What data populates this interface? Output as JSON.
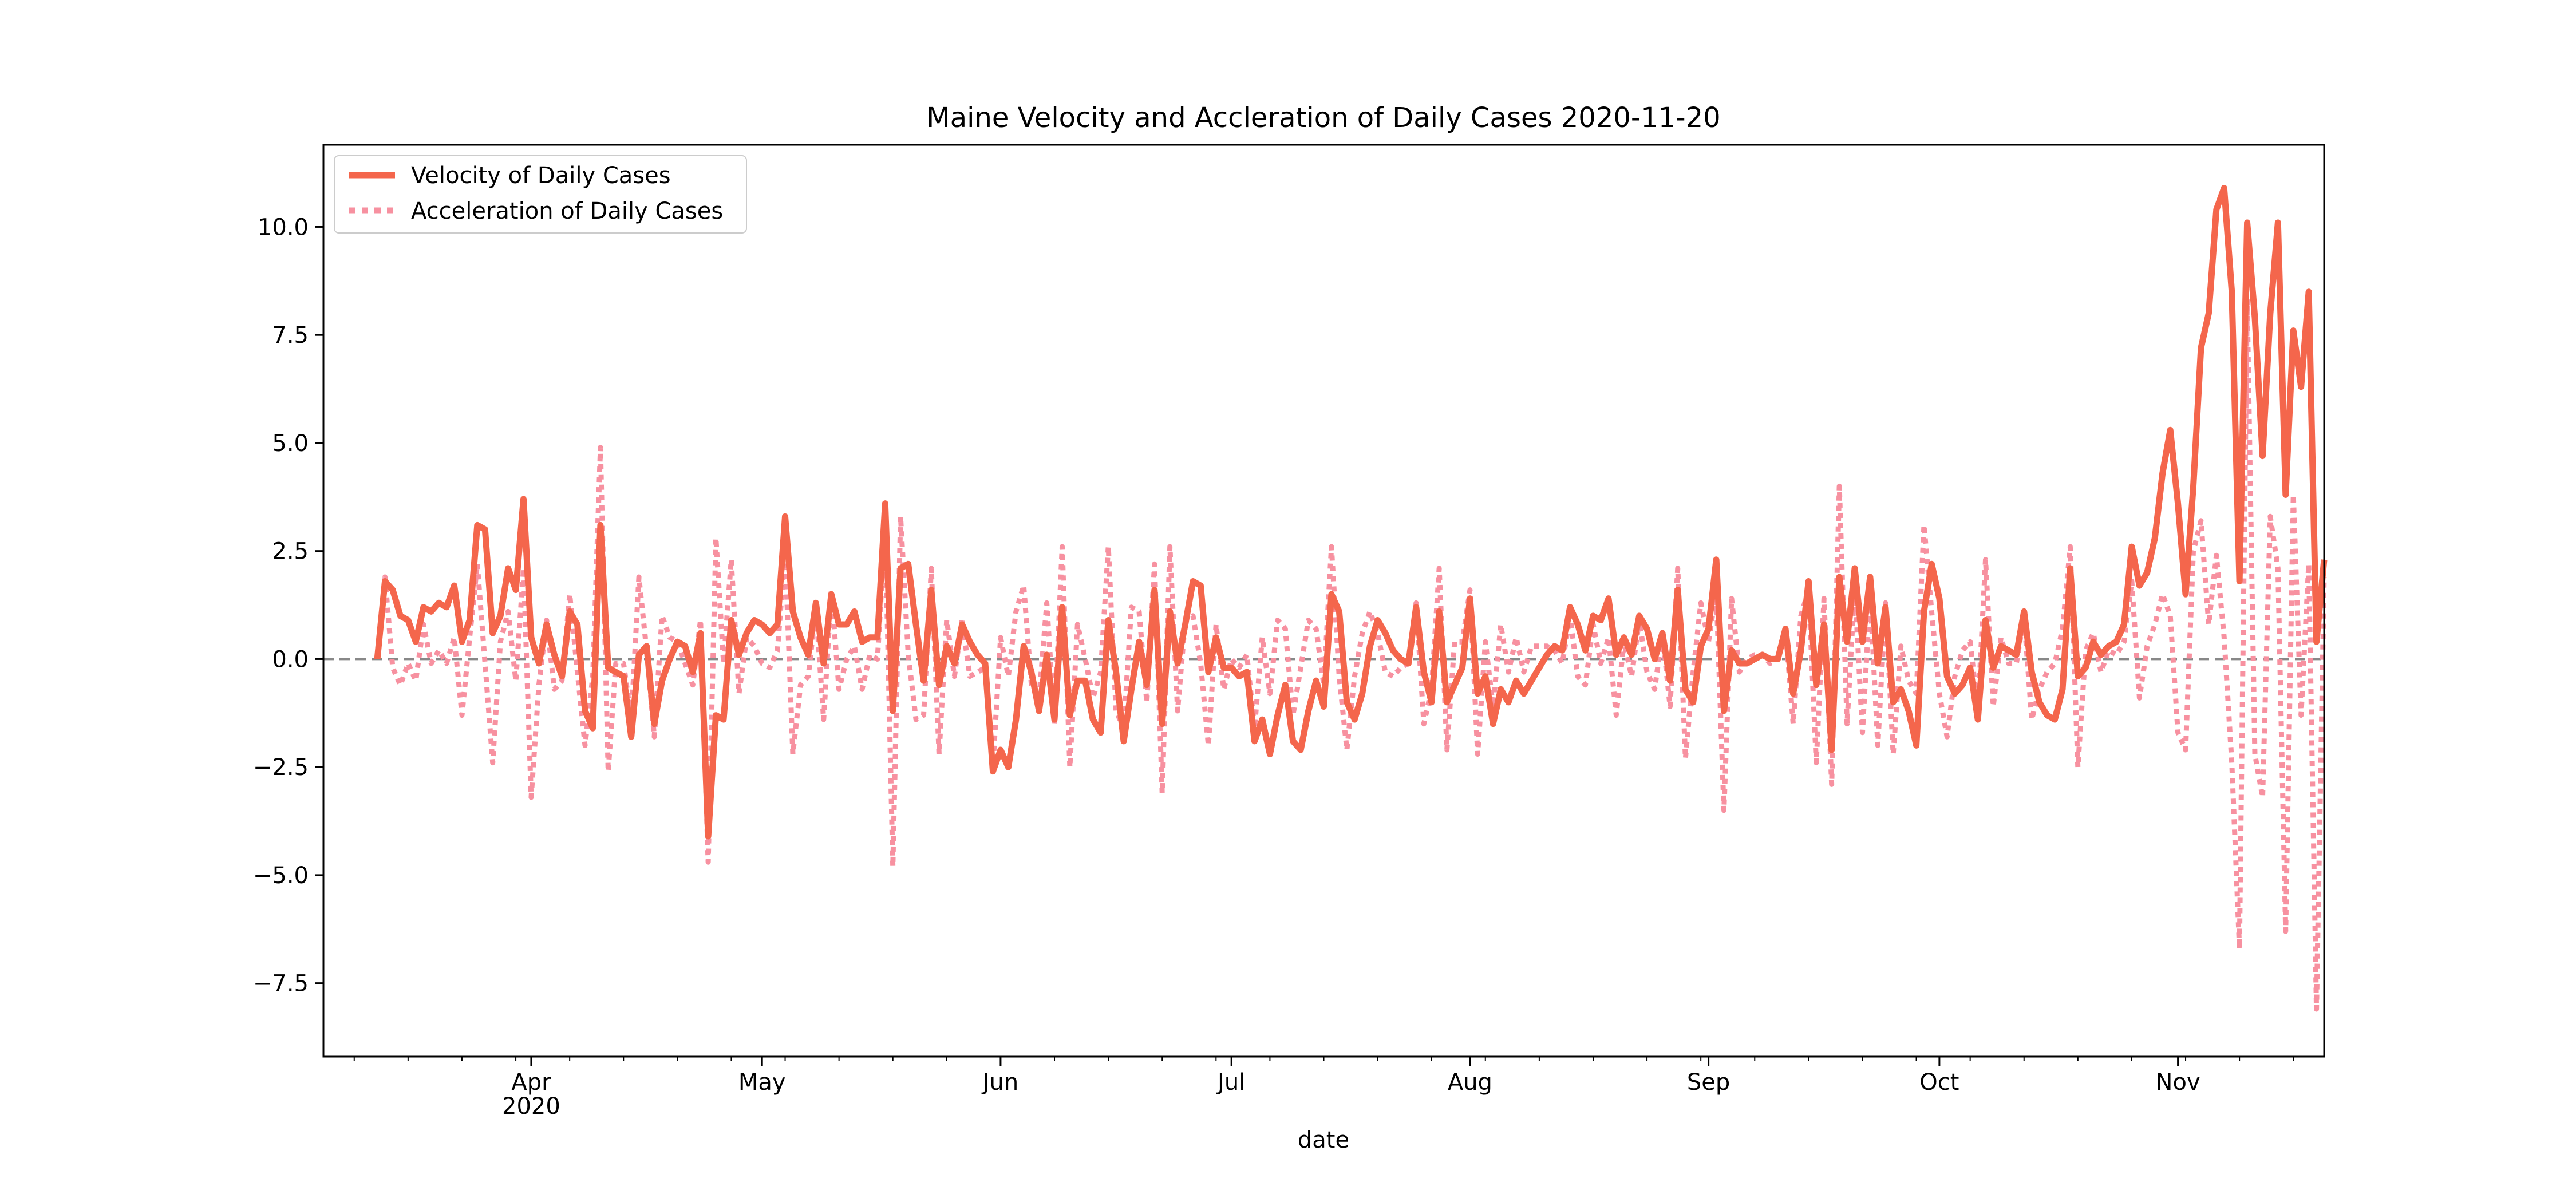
{
  "chart_data": {
    "type": "line",
    "title": "Maine Velocity and Accleration of Daily Cases 2020-11-20",
    "xlabel": "date",
    "ylabel": "",
    "x_start": "2020-03-12",
    "x_end": "2020-11-20",
    "xlim": [
      "2020-03-05",
      "2020-11-20"
    ],
    "ylim": [
      -9.2,
      11.9
    ],
    "y_ticks": [
      -7.5,
      -5.0,
      -2.5,
      0.0,
      2.5,
      5.0,
      7.5,
      10.0
    ],
    "y_tick_labels": [
      "−7.5",
      "−5.0",
      "−2.5",
      "0.0",
      "2.5",
      "5.0",
      "7.5",
      "10.0"
    ],
    "x_ticks": [
      {
        "date": "2020-04-01",
        "label": "Apr",
        "sublabel": "2020"
      },
      {
        "date": "2020-05-01",
        "label": "May",
        "sublabel": ""
      },
      {
        "date": "2020-06-01",
        "label": "Jun",
        "sublabel": ""
      },
      {
        "date": "2020-07-01",
        "label": "Jul",
        "sublabel": ""
      },
      {
        "date": "2020-08-01",
        "label": "Aug",
        "sublabel": ""
      },
      {
        "date": "2020-09-01",
        "label": "Sep",
        "sublabel": ""
      },
      {
        "date": "2020-10-01",
        "label": "Oct",
        "sublabel": ""
      },
      {
        "date": "2020-11-01",
        "label": "Nov",
        "sublabel": ""
      }
    ],
    "reference_line": 0,
    "legend": "top-left",
    "grid": false,
    "series": [
      {
        "name": "Velocity of Daily Cases",
        "color": "#f4664c",
        "style": "solid",
        "values": [
          0.0,
          1.8,
          1.6,
          1.0,
          0.9,
          0.4,
          1.2,
          1.1,
          1.3,
          1.2,
          1.7,
          0.4,
          0.9,
          3.1,
          3.0,
          0.6,
          1.0,
          2.1,
          1.6,
          3.7,
          0.5,
          -0.1,
          0.8,
          0.1,
          -0.4,
          1.1,
          0.8,
          -1.2,
          -1.6,
          3.1,
          -0.2,
          -0.3,
          -0.4,
          -1.8,
          0.1,
          0.3,
          -1.5,
          -0.5,
          0.0,
          0.4,
          0.3,
          -0.3,
          0.6,
          -4.1,
          -1.3,
          -1.4,
          0.9,
          0.1,
          0.6,
          0.9,
          0.8,
          0.6,
          0.8,
          3.3,
          1.1,
          0.5,
          0.1,
          1.3,
          -0.1,
          1.5,
          0.8,
          0.8,
          1.1,
          0.4,
          0.5,
          0.5,
          3.6,
          -1.2,
          2.1,
          2.2,
          0.8,
          -0.5,
          1.6,
          -0.6,
          0.3,
          -0.1,
          0.8,
          0.4,
          0.1,
          -0.1,
          -2.6,
          -2.1,
          -2.5,
          -1.4,
          0.3,
          -0.3,
          -1.2,
          0.1,
          -1.4,
          1.2,
          -1.3,
          -0.5,
          -0.5,
          -1.4,
          -1.7,
          0.9,
          -0.3,
          -1.9,
          -0.7,
          0.4,
          -0.6,
          1.6,
          -1.5,
          1.1,
          -0.1,
          0.8,
          1.8,
          1.7,
          -0.3,
          0.5,
          -0.2,
          -0.2,
          -0.4,
          -0.3,
          -1.9,
          -1.4,
          -2.2,
          -1.3,
          -0.6,
          -1.9,
          -2.1,
          -1.2,
          -0.5,
          -1.1,
          1.5,
          1.1,
          -1.0,
          -1.4,
          -0.8,
          0.3,
          0.9,
          0.6,
          0.2,
          0.0,
          -0.1,
          1.2,
          -0.3,
          -1.0,
          1.1,
          -1.0,
          -0.6,
          -0.2,
          1.4,
          -0.8,
          -0.4,
          -1.5,
          -0.7,
          -1.0,
          -0.5,
          -0.8,
          -0.5,
          -0.2,
          0.1,
          0.3,
          0.2,
          1.2,
          0.8,
          0.2,
          1.0,
          0.9,
          1.4,
          0.1,
          0.5,
          0.1,
          1.0,
          0.7,
          0.0,
          0.6,
          -0.5,
          1.6,
          -0.7,
          -1.0,
          0.3,
          0.7,
          2.3,
          -1.2,
          0.2,
          -0.1,
          -0.1,
          0.0,
          0.1,
          0.0,
          0.0,
          0.7,
          -0.8,
          0.2,
          1.8,
          -0.6,
          0.8,
          -2.1,
          1.9,
          0.4,
          2.1,
          0.4,
          1.9,
          -0.1,
          1.2,
          -1.0,
          -0.7,
          -1.2,
          -2.0,
          1.1,
          2.2,
          1.4,
          -0.4,
          -0.8,
          -0.6,
          -0.2,
          -1.4,
          0.9,
          -0.2,
          0.3,
          0.2,
          0.1,
          1.1,
          -0.3,
          -1.0,
          -1.3,
          -1.4,
          -0.7,
          2.1,
          -0.4,
          -0.2,
          0.4,
          0.1,
          0.3,
          0.4,
          0.8,
          2.6,
          1.7,
          2.0,
          2.8,
          4.3,
          5.3,
          3.6,
          1.5,
          4.0,
          7.2,
          8.0,
          10.4,
          10.9,
          8.5,
          1.8,
          10.1,
          7.9,
          4.7,
          8.0,
          10.1,
          3.8,
          7.6,
          6.3,
          8.5,
          0.4,
          2.3
        ]
      },
      {
        "name": "Acceleration of Daily Cases",
        "color": "#f791a0",
        "style": "dotted",
        "values": [
          0.0,
          1.9,
          -0.2,
          -0.6,
          -0.1,
          -0.5,
          0.8,
          -0.1,
          0.2,
          -0.1,
          0.5,
          -1.3,
          0.5,
          2.2,
          -0.1,
          -2.4,
          0.4,
          1.1,
          -0.5,
          2.1,
          -3.2,
          -0.6,
          0.9,
          -0.7,
          -0.5,
          1.5,
          -0.3,
          -2.0,
          -0.4,
          4.9,
          -2.6,
          -0.1,
          -0.1,
          -1.4,
          1.9,
          0.2,
          -1.8,
          1.0,
          0.5,
          0.4,
          -0.1,
          -0.6,
          0.9,
          -4.7,
          2.8,
          -0.1,
          2.3,
          -0.8,
          0.5,
          0.3,
          -0.1,
          -0.2,
          0.2,
          2.5,
          -2.2,
          -0.6,
          -0.4,
          1.2,
          -1.4,
          1.6,
          -0.7,
          0.0,
          0.3,
          -0.7,
          0.1,
          0.0,
          3.1,
          -4.8,
          3.3,
          0.1,
          -1.4,
          -1.3,
          2.1,
          -2.2,
          0.9,
          -0.4,
          0.9,
          -0.4,
          -0.3,
          -0.2,
          -2.5,
          0.5,
          -0.4,
          1.1,
          1.7,
          -0.6,
          -0.9,
          1.3,
          -1.5,
          2.6,
          -2.5,
          0.8,
          0.0,
          -0.9,
          -0.3,
          2.6,
          -1.2,
          -1.6,
          1.2,
          1.1,
          -1.0,
          2.2,
          -3.1,
          2.6,
          -1.2,
          0.9,
          1.0,
          -0.1,
          -2.0,
          0.8,
          -0.7,
          0.0,
          -0.2,
          0.1,
          -1.6,
          0.5,
          -0.8,
          0.9,
          0.7,
          -1.3,
          -0.2,
          0.9,
          0.7,
          -0.6,
          2.6,
          -0.4,
          -2.1,
          -0.4,
          0.6,
          1.1,
          0.6,
          -0.3,
          -0.4,
          -0.2,
          -0.1,
          1.3,
          -1.5,
          -0.7,
          2.1,
          -2.1,
          0.4,
          0.4,
          1.6,
          -2.2,
          0.4,
          -1.1,
          0.8,
          -0.3,
          0.5,
          -0.3,
          0.3,
          0.3,
          0.3,
          0.2,
          -0.1,
          1.0,
          -0.4,
          -0.6,
          0.8,
          -0.1,
          0.5,
          -1.3,
          0.4,
          -0.4,
          0.9,
          -0.3,
          -0.7,
          0.6,
          -1.1,
          2.1,
          -2.3,
          -0.3,
          1.3,
          0.4,
          1.6,
          -3.5,
          1.4,
          -0.3,
          0.0,
          0.1,
          0.1,
          -0.1,
          0.0,
          0.7,
          -1.5,
          1.0,
          1.6,
          -2.4,
          1.4,
          -2.9,
          4.0,
          -1.5,
          1.7,
          -1.7,
          1.5,
          -2.0,
          1.3,
          -2.2,
          0.3,
          -0.5,
          -0.8,
          3.1,
          1.1,
          -0.8,
          -1.8,
          -0.4,
          0.2,
          0.4,
          -1.2,
          2.3,
          -1.1,
          0.5,
          -0.1,
          -0.1,
          1.0,
          -1.4,
          -0.7,
          -0.3,
          -0.1,
          0.7,
          2.6,
          -2.5,
          0.2,
          0.6,
          -0.3,
          0.2,
          0.1,
          0.4,
          1.8,
          -0.9,
          0.3,
          0.8,
          1.5,
          1.0,
          -1.7,
          -2.1,
          2.5,
          3.2,
          0.8,
          2.4,
          0.5,
          -2.4,
          -6.7,
          8.3,
          -2.2,
          -3.2,
          3.3,
          2.1,
          -6.3,
          3.8,
          -1.3,
          2.2,
          -8.1,
          1.9
        ]
      }
    ]
  }
}
